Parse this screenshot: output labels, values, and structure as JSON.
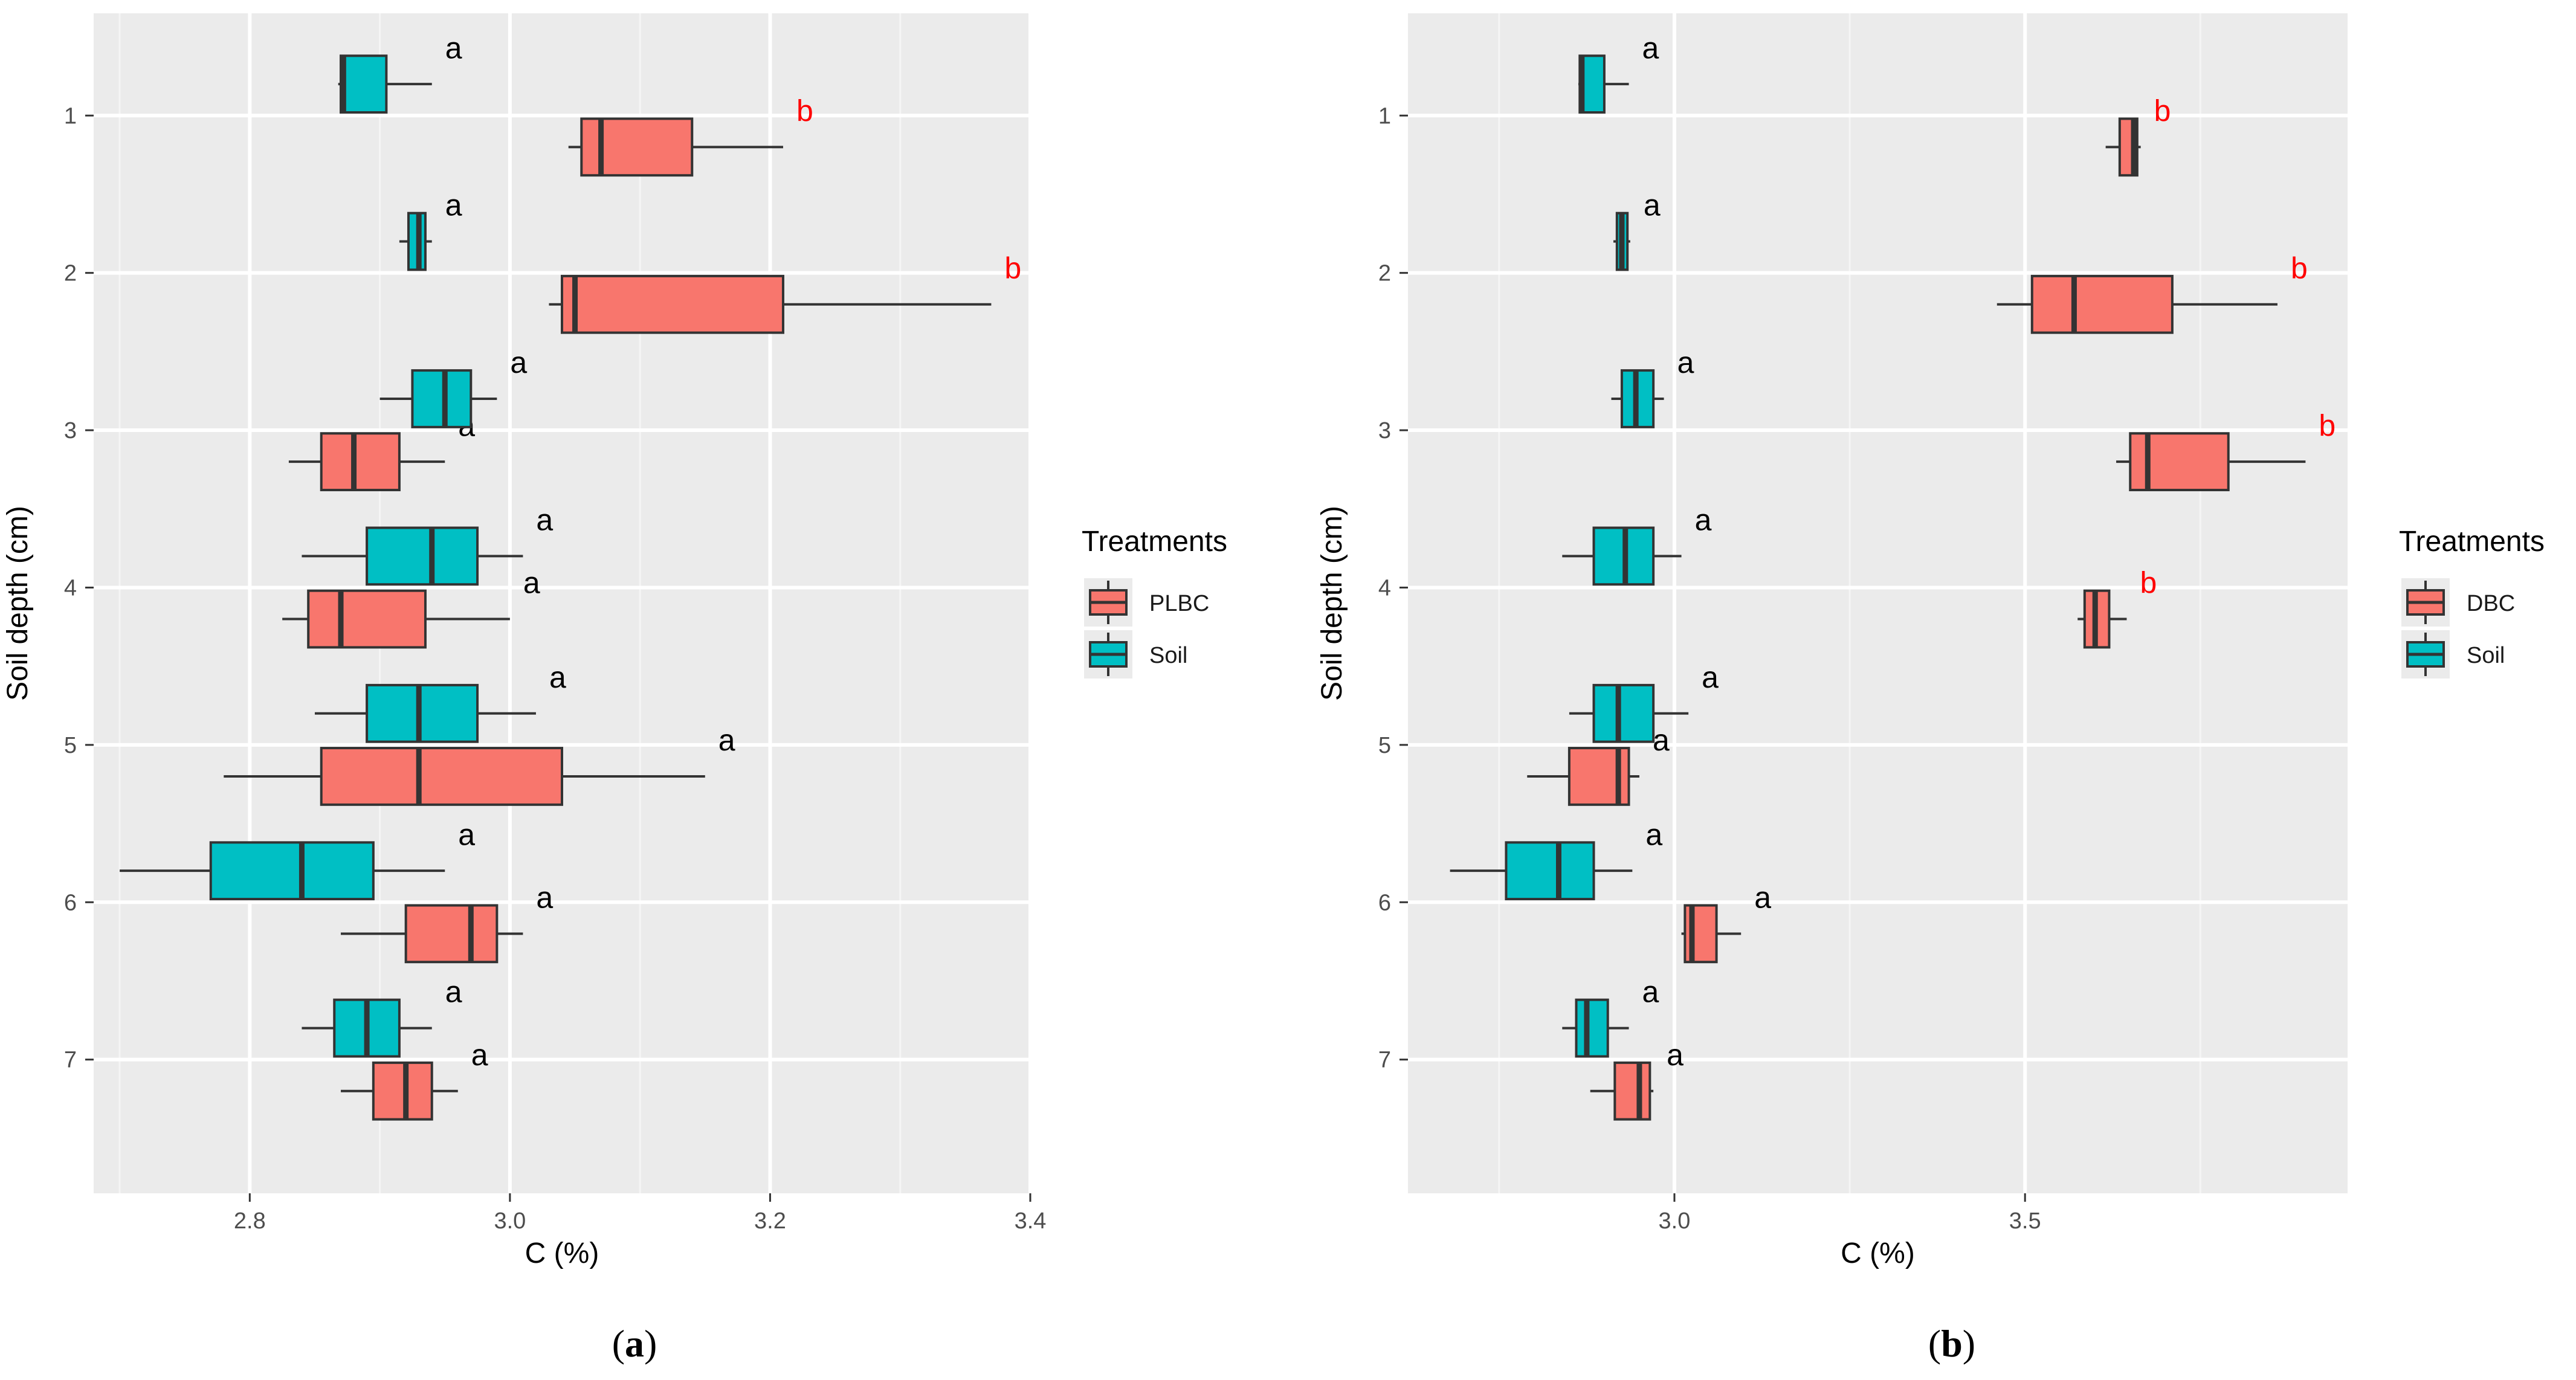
{
  "colors": {
    "panel_bg": "#EBEBEB",
    "grid_major": "#FFFFFF",
    "grid_minor": "#F5F5F5",
    "red_box": "#F8766D",
    "teal_box": "#00BFC4",
    "outline": "#333333",
    "tick_text": "#4D4D4D",
    "label_red": "#FF0000",
    "label_black": "#000000"
  },
  "chart_data": [
    {
      "type": "boxplot",
      "orientation": "horizontal",
      "caption": {
        "open": "(",
        "letter": "a",
        "close": ")"
      },
      "xlabel": "C (%)",
      "ylabel": "Soil depth (cm)",
      "xlim": [
        2.68,
        3.4
      ],
      "xticks": [
        2.8,
        3.0,
        3.2,
        3.4
      ],
      "xtick_labels": [
        "2.8",
        "3.0",
        "3.2",
        "3.4"
      ],
      "categories": [
        "1",
        "2",
        "3",
        "4",
        "5",
        "6",
        "7"
      ],
      "legend": {
        "title": "Treatments",
        "position": "right",
        "entries": [
          {
            "name": "PLBC",
            "color_key": "red_box"
          },
          {
            "name": "Soil",
            "color_key": "teal_box"
          }
        ]
      },
      "series": [
        {
          "name": "PLBC",
          "color_key": "red_box",
          "boxes": [
            {
              "depth": "1",
              "min": 3.045,
              "q1": 3.055,
              "median": 3.07,
              "q3": 3.14,
              "max": 3.21,
              "label": "b",
              "label_color_key": "label_red"
            },
            {
              "depth": "2",
              "min": 3.03,
              "q1": 3.04,
              "median": 3.05,
              "q3": 3.21,
              "max": 3.37,
              "label": "b",
              "label_color_key": "label_red"
            },
            {
              "depth": "3",
              "min": 2.83,
              "q1": 2.855,
              "median": 2.88,
              "q3": 2.915,
              "max": 2.95,
              "label": "a",
              "label_color_key": "label_black"
            },
            {
              "depth": "4",
              "min": 2.825,
              "q1": 2.845,
              "median": 2.87,
              "q3": 2.935,
              "max": 3.0,
              "label": "a",
              "label_color_key": "label_black"
            },
            {
              "depth": "5",
              "min": 2.78,
              "q1": 2.855,
              "median": 2.93,
              "q3": 3.04,
              "max": 3.15,
              "label": "a",
              "label_color_key": "label_black"
            },
            {
              "depth": "6",
              "min": 2.87,
              "q1": 2.92,
              "median": 2.97,
              "q3": 2.99,
              "max": 3.01,
              "label": "a",
              "label_color_key": "label_black"
            },
            {
              "depth": "7",
              "min": 2.87,
              "q1": 2.895,
              "median": 2.92,
              "q3": 2.94,
              "max": 2.96,
              "label": "a",
              "label_color_key": "label_black"
            }
          ]
        },
        {
          "name": "Soil",
          "color_key": "teal_box",
          "boxes": [
            {
              "depth": "1",
              "min": 2.868,
              "q1": 2.87,
              "median": 2.872,
              "q3": 2.905,
              "max": 2.94,
              "label": "a",
              "label_color_key": "label_black"
            },
            {
              "depth": "2",
              "min": 2.915,
              "q1": 2.922,
              "median": 2.93,
              "q3": 2.935,
              "max": 2.94,
              "label": "a",
              "label_color_key": "label_black"
            },
            {
              "depth": "3",
              "min": 2.9,
              "q1": 2.925,
              "median": 2.95,
              "q3": 2.97,
              "max": 2.99,
              "label": "a",
              "label_color_key": "label_black"
            },
            {
              "depth": "4",
              "min": 2.84,
              "q1": 2.89,
              "median": 2.94,
              "q3": 2.975,
              "max": 3.01,
              "label": "a",
              "label_color_key": "label_black"
            },
            {
              "depth": "5",
              "min": 2.85,
              "q1": 2.89,
              "median": 2.93,
              "q3": 2.975,
              "max": 3.02,
              "label": "a",
              "label_color_key": "label_black"
            },
            {
              "depth": "6",
              "min": 2.7,
              "q1": 2.77,
              "median": 2.84,
              "q3": 2.895,
              "max": 2.95,
              "label": "a",
              "label_color_key": "label_black"
            },
            {
              "depth": "7",
              "min": 2.84,
              "q1": 2.865,
              "median": 2.89,
              "q3": 2.915,
              "max": 2.94,
              "label": "a",
              "label_color_key": "label_black"
            }
          ]
        }
      ]
    },
    {
      "type": "boxplot",
      "orientation": "horizontal",
      "caption": {
        "open": "(",
        "letter": "b",
        "close": ")"
      },
      "xlabel": "C (%)",
      "ylabel": "Soil depth (cm)",
      "xlim": [
        2.62,
        3.96
      ],
      "xticks": [
        3.0,
        3.5
      ],
      "xtick_labels": [
        "3.0",
        "3.5"
      ],
      "categories": [
        "1",
        "2",
        "3",
        "4",
        "5",
        "6",
        "7"
      ],
      "legend": {
        "title": "Treatments",
        "position": "right",
        "entries": [
          {
            "name": "DBC",
            "color_key": "red_box"
          },
          {
            "name": "Soil",
            "color_key": "teal_box"
          }
        ]
      },
      "series": [
        {
          "name": "DBC",
          "color_key": "red_box",
          "boxes": [
            {
              "depth": "1",
              "min": 3.615,
              "q1": 3.635,
              "median": 3.655,
              "q3": 3.66,
              "max": 3.665,
              "label": "b",
              "label_color_key": "label_red"
            },
            {
              "depth": "2",
              "min": 3.46,
              "q1": 3.51,
              "median": 3.57,
              "q3": 3.71,
              "max": 3.86,
              "label": "b",
              "label_color_key": "label_red"
            },
            {
              "depth": "3",
              "min": 3.63,
              "q1": 3.65,
              "median": 3.675,
              "q3": 3.79,
              "max": 3.9,
              "label": "b",
              "label_color_key": "label_red"
            },
            {
              "depth": "4",
              "min": 3.575,
              "q1": 3.585,
              "median": 3.6,
              "q3": 3.62,
              "max": 3.645,
              "label": "b",
              "label_color_key": "label_red"
            },
            {
              "depth": "5",
              "min": 2.79,
              "q1": 2.85,
              "median": 2.92,
              "q3": 2.935,
              "max": 2.95,
              "label": "a",
              "label_color_key": "label_black"
            },
            {
              "depth": "6",
              "min": 3.01,
              "q1": 3.015,
              "median": 3.025,
              "q3": 3.06,
              "max": 3.095,
              "label": "a",
              "label_color_key": "label_black"
            },
            {
              "depth": "7",
              "min": 2.88,
              "q1": 2.915,
              "median": 2.95,
              "q3": 2.965,
              "max": 2.97,
              "label": "a",
              "label_color_key": "label_black"
            }
          ]
        },
        {
          "name": "Soil",
          "color_key": "teal_box",
          "boxes": [
            {
              "depth": "1",
              "min": 2.863,
              "q1": 2.865,
              "median": 2.868,
              "q3": 2.9,
              "max": 2.935,
              "label": "a",
              "label_color_key": "label_black"
            },
            {
              "depth": "2",
              "min": 2.913,
              "q1": 2.918,
              "median": 2.925,
              "q3": 2.933,
              "max": 2.937,
              "label": "a",
              "label_color_key": "label_black"
            },
            {
              "depth": "3",
              "min": 2.91,
              "q1": 2.925,
              "median": 2.945,
              "q3": 2.97,
              "max": 2.985,
              "label": "a",
              "label_color_key": "label_black"
            },
            {
              "depth": "4",
              "min": 2.84,
              "q1": 2.885,
              "median": 2.93,
              "q3": 2.97,
              "max": 3.01,
              "label": "a",
              "label_color_key": "label_black"
            },
            {
              "depth": "5",
              "min": 2.85,
              "q1": 2.885,
              "median": 2.92,
              "q3": 2.97,
              "max": 3.02,
              "label": "a",
              "label_color_key": "label_black"
            },
            {
              "depth": "6",
              "min": 2.68,
              "q1": 2.76,
              "median": 2.835,
              "q3": 2.885,
              "max": 2.94,
              "label": "a",
              "label_color_key": "label_black"
            },
            {
              "depth": "7",
              "min": 2.84,
              "q1": 2.86,
              "median": 2.875,
              "q3": 2.905,
              "max": 2.935,
              "label": "a",
              "label_color_key": "label_black"
            }
          ]
        }
      ]
    }
  ]
}
